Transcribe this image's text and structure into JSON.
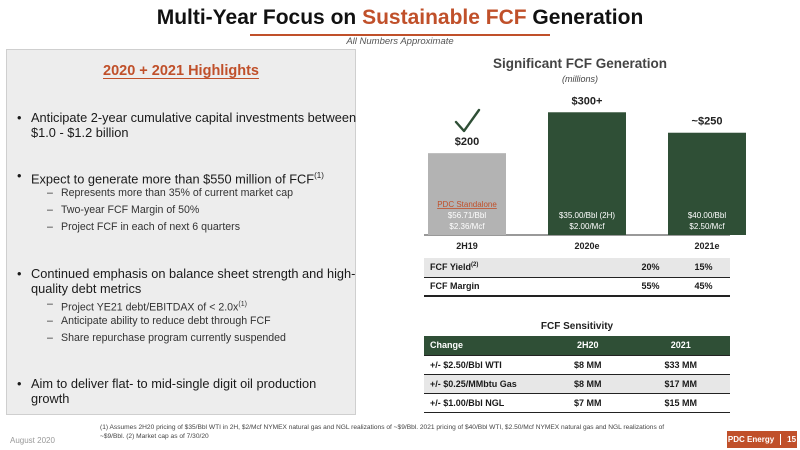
{
  "header": {
    "title_pre": "Multi-Year Focus on ",
    "title_accent": "Sustainable FCF",
    "title_post": " Generation",
    "subtitle": "All Numbers Approximate"
  },
  "highlights": {
    "title": "2020 + 2021 Highlights",
    "b1": "Anticipate 2-year cumulative capital investments between $1.0 - $1.2 billion",
    "b2": "Expect to generate more than $550 million of FCF",
    "b2_ref": "(1)",
    "b2_subs": [
      "Represents more than 35% of current market cap",
      "Two-year FCF Margin of 50%",
      "Project FCF in each of next 6 quarters"
    ],
    "b3": "Continued emphasis on balance sheet strength and high-quality debt metrics",
    "b3_sub1": "Project YE21 debt/EBITDAX of < 2.0x",
    "b3_sub1_ref": "(1)",
    "b3_sub2": "Anticipate ability to reduce debt through FCF",
    "b3_sub3": "Share repurchase program currently suspended",
    "b4": "Aim to deliver flat- to mid-single digit oil production growth"
  },
  "chart_data": {
    "type": "bar",
    "title": "Significant FCF Generation",
    "subtitle": "(millions)",
    "categories": [
      "2H19",
      "2020e",
      "2021e"
    ],
    "values": [
      200,
      300,
      250
    ],
    "value_labels": [
      "$200",
      "$300+",
      "~$250"
    ],
    "bar_colors": [
      "#b3b3b3",
      "#2f4f36",
      "#2f4f36"
    ],
    "inner_labels": [
      [
        "PDC Standalone",
        "$56.71/Bbl",
        "$2.36/Mcf"
      ],
      [
        "$35.00/Bbl (2H)",
        "$2.00/Mcf"
      ],
      [
        "$40.00/Bbl",
        "$2.50/Mcf"
      ]
    ],
    "ylim": [
      0,
      330
    ],
    "checkmark_on": "2H19"
  },
  "metrics": {
    "fcf_yield_label": "FCF Yield",
    "fcf_yield_ref": "(2)",
    "fcf_yield": [
      "",
      "20%",
      "15%"
    ],
    "fcf_margin_label": "FCF Margin",
    "fcf_margin": [
      "",
      "55%",
      "45%"
    ]
  },
  "sensitivity": {
    "title": "FCF Sensitivity",
    "headers": [
      "Change",
      "2H20",
      "2021"
    ],
    "rows": [
      [
        "+/- $2.50/Bbl WTI",
        "$8 MM",
        "$33 MM"
      ],
      [
        "+/- $0.25/MMbtu Gas",
        "$8 MM",
        "$17 MM"
      ],
      [
        "+/- $1.00/Bbl NGL",
        "$7 MM",
        "$15 MM"
      ]
    ]
  },
  "footer": {
    "footnote": "(1)   Assumes 2H20 pricing of $35/Bbl WTI in 2H, $2/Mcf NYMEX natural gas and NGL realizations of ~$9/Bbl. 2021 pricing of $40/Bbl WTI, $2.50/Mcf NYMEX natural gas and NGL realizations of ~$9/Bbl. (2) Market cap as of 7/30/20",
    "date": "August 2020",
    "brand": "PDC Energy",
    "page": "15"
  }
}
